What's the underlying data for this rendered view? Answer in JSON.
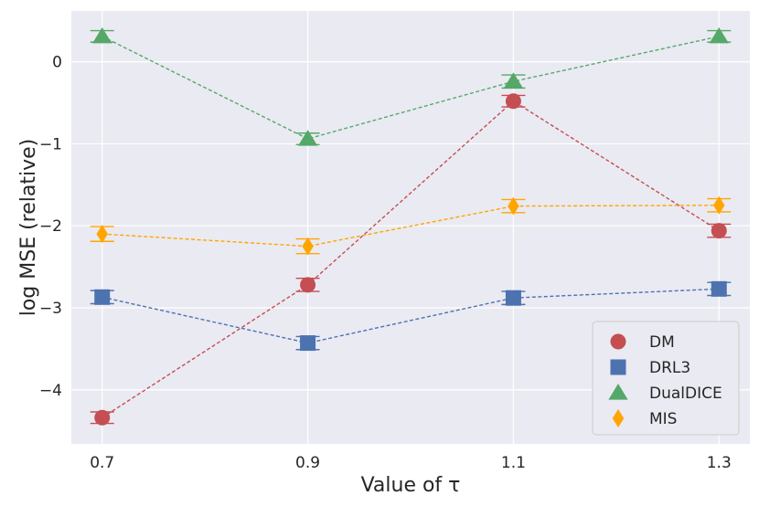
{
  "chart_data": {
    "type": "line",
    "title": "",
    "xlabel": "Value of τ",
    "ylabel": "log MSE (relative)",
    "x": [
      0.7,
      0.9,
      1.1,
      1.3
    ],
    "x_tick_labels": [
      "0.7",
      "0.9",
      "1.1",
      "1.3"
    ],
    "y_ticks": [
      0,
      -1,
      -2,
      -3,
      -4
    ],
    "y_tick_labels": [
      "0",
      "−1",
      "−2",
      "−3",
      "−4"
    ],
    "xlim": [
      0.67,
      1.33
    ],
    "ylim": [
      -4.66,
      0.62
    ],
    "grid": true,
    "legend_position": "lower-right",
    "series": [
      {
        "name": "DM",
        "marker": "circle",
        "color": "#c44e52",
        "values": [
          -4.34,
          -2.72,
          -0.48,
          -2.06
        ],
        "errors": [
          0.07,
          0.08,
          0.07,
          0.08
        ]
      },
      {
        "name": "DRL3",
        "marker": "square",
        "color": "#4c72b0",
        "values": [
          -2.87,
          -3.43,
          -2.88,
          -2.77
        ],
        "errors": [
          0.08,
          0.08,
          0.08,
          0.08
        ]
      },
      {
        "name": "DualDICE",
        "marker": "triangle",
        "color": "#55a868",
        "values": [
          0.31,
          -0.94,
          -0.24,
          0.31
        ],
        "errors": [
          0.07,
          0.07,
          0.08,
          0.07
        ]
      },
      {
        "name": "MIS",
        "marker": "diamond",
        "color": "#ffa500",
        "values": [
          -2.1,
          -2.25,
          -1.76,
          -1.75
        ],
        "errors": [
          0.09,
          0.09,
          0.08,
          0.08
        ]
      }
    ]
  }
}
